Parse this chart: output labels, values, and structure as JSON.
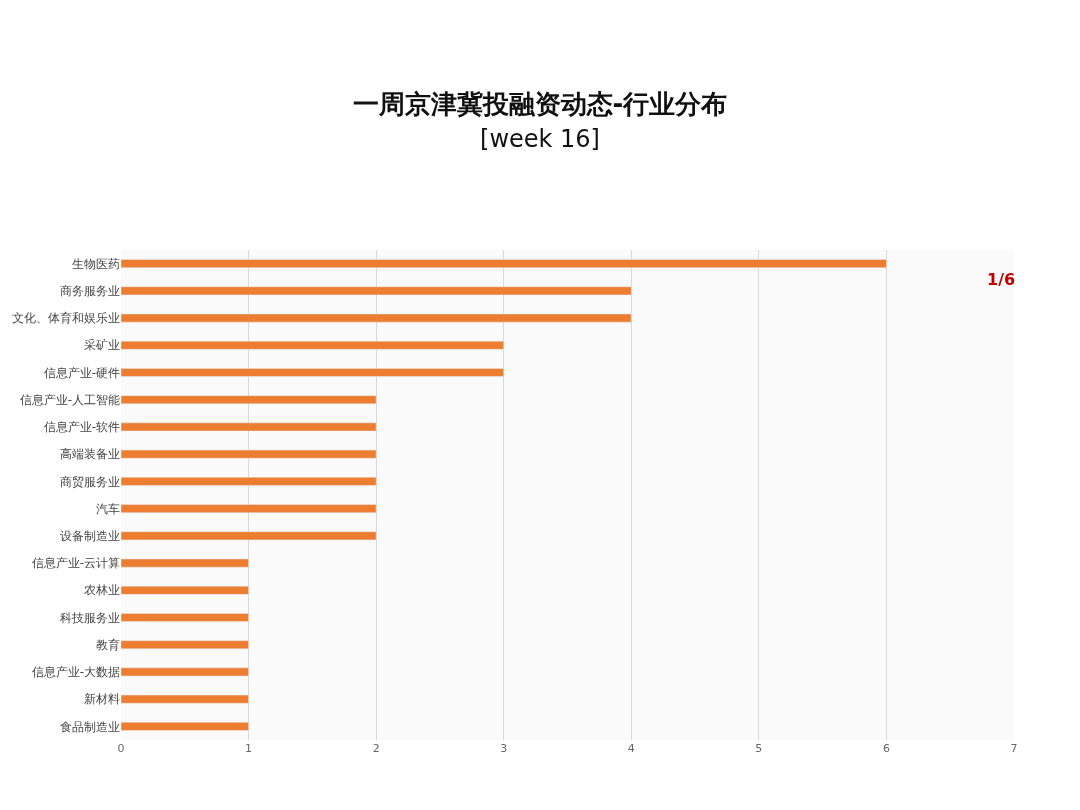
{
  "chart_data": {
    "type": "bar",
    "title": "一周京津冀投融资动态-行业分布",
    "subtitle": "[week 16]",
    "orientation": "horizontal",
    "categories": [
      "生物医药",
      "商务服务业",
      "文化、体育和娱乐业",
      "采矿业",
      "信息产业-硬件",
      "信息产业-人工智能",
      "信息产业-软件",
      "高端装备业",
      "商贸服务业",
      "汽车",
      "设备制造业",
      "信息产业-云计算",
      "农林业",
      "科技服务业",
      "教育",
      "信息产业-大数据",
      "新材料",
      "食品制造业"
    ],
    "values": [
      6,
      4,
      4,
      3,
      3,
      2,
      2,
      2,
      2,
      2,
      2,
      1,
      1,
      1,
      1,
      1,
      1,
      1
    ],
    "color": "#ed7d31",
    "xlim": [
      0,
      7
    ],
    "xticks": [
      0,
      1,
      2,
      3,
      4,
      5,
      6,
      7
    ],
    "grid": "x",
    "annotations": [
      "1/6"
    ]
  }
}
